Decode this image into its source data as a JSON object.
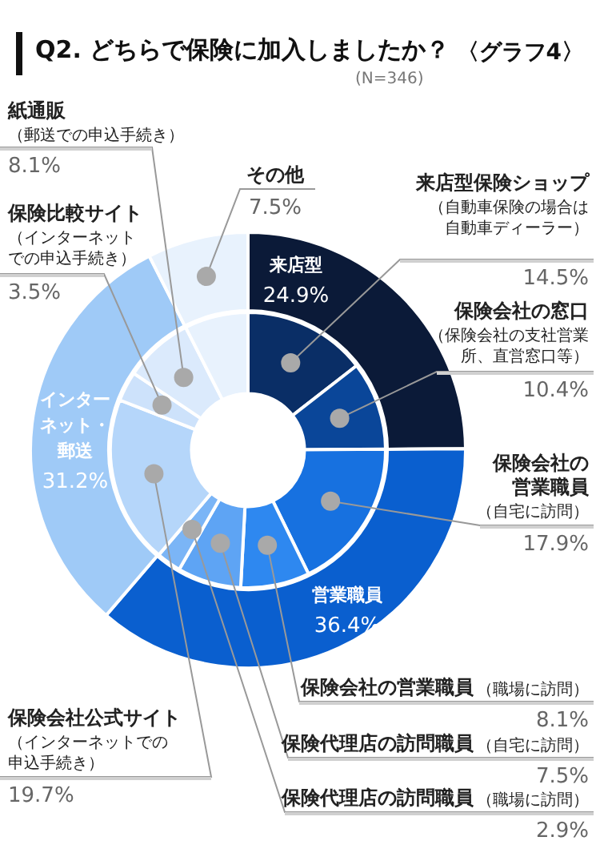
{
  "chart_data": [
    {
      "type": "donut",
      "title": "Q2. どちらで保険に加入しましたか？",
      "annotations": [
        "〈グラフ4〉",
        "(N=346)"
      ],
      "legend": false,
      "categories": [
        "来店型",
        "営業職員",
        "インターネット・郵送",
        "その他"
      ],
      "values": [
        24.9,
        36.4,
        31.2,
        7.5
      ],
      "colors": [
        "#0b1a38",
        "#0a5fcf",
        "#9fcaf7",
        "#e8f2fd"
      ],
      "value_labels": [
        "24.9%",
        "36.4%",
        "31.2%",
        "7.5%"
      ]
    },
    {
      "type": "donut",
      "legend": false,
      "categories": [
        "来店型保険ショップ（自動車保険の場合は自動車ディーラー）",
        "保険会社の窓口（保険会社の支社営業所、直営窓口等）",
        "保険会社の営業職員（自宅に訪問）",
        "保険会社の営業職員（職場に訪問）",
        "保険代理店の訪問職員（自宅に訪問）",
        "保険代理店の訪問職員（職場に訪問）",
        "保険会社公式サイト（インターネットでの申込手続き）",
        "保険比較サイト（インターネットでの申込手続き）",
        "紙通販（郵送での申込手続き）",
        null
      ],
      "values": [
        14.5,
        10.4,
        17.9,
        8.1,
        7.5,
        2.9,
        19.7,
        3.5,
        8.1,
        7.5
      ],
      "colors": [
        "#0a2e66",
        "#0a4699",
        "#1771e0",
        "#2e88f0",
        "#5ea4f4",
        "#7bb5f6",
        "#b5d6fa",
        "#cde2fb",
        "#dbeafc",
        "#e8f2fd"
      ],
      "value_labels": [
        "14.5%",
        "10.4%",
        "17.9%",
        "8.1%",
        "7.5%",
        "2.9%",
        "19.7%",
        "3.5%",
        "8.1%",
        null
      ]
    }
  ]
}
